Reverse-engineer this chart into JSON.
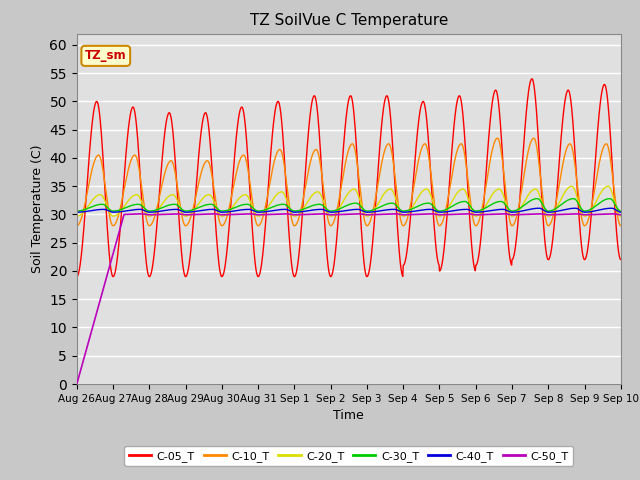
{
  "title": "TZ SoilVue C Temperature",
  "xlabel": "Time",
  "ylabel": "Soil Temperature (C)",
  "ylim": [
    0,
    62
  ],
  "yticks": [
    0,
    5,
    10,
    15,
    20,
    25,
    30,
    35,
    40,
    45,
    50,
    55,
    60
  ],
  "fig_bg_color": "#c8c8c8",
  "plot_bg_color": "#e0e0e0",
  "annotation_text": "TZ_sm",
  "annotation_bg": "#ffffcc",
  "annotation_border": "#cc8800",
  "series": [
    {
      "label": "C-05_T",
      "color": "#ff0000",
      "base": 29.0,
      "amp_day_peaks": [
        21,
        20,
        19,
        19,
        20,
        21,
        22,
        22,
        22,
        21,
        22,
        23,
        25,
        23,
        24
      ],
      "amp_day_troughs": [
        10,
        10,
        10,
        10,
        10,
        10,
        10,
        10,
        10,
        8,
        9,
        8,
        7,
        7,
        7
      ],
      "peak_hour": 0.55,
      "depth": 1
    },
    {
      "label": "C-10_T",
      "color": "#ff8800",
      "base": 29.5,
      "amp_day_peaks": [
        11,
        11,
        10,
        10,
        11,
        12,
        12,
        13,
        13,
        13,
        13,
        14,
        14,
        13,
        13
      ],
      "amp_day_troughs": [
        1.5,
        1.5,
        1.5,
        1.5,
        1.5,
        1.5,
        1.5,
        1.5,
        1.5,
        1.5,
        1.5,
        1.5,
        1.5,
        1.5,
        1.5
      ],
      "peak_hour": 0.6,
      "depth": 1
    },
    {
      "label": "C-20_T",
      "color": "#dddd00",
      "base": 30.0,
      "amp_day_peaks": [
        3.5,
        3.5,
        3.5,
        3.5,
        3.5,
        4.0,
        4.0,
        4.5,
        4.5,
        4.5,
        4.5,
        4.5,
        4.5,
        5.0,
        5.0
      ],
      "amp_day_troughs": [
        0.3,
        0.3,
        0.3,
        0.3,
        0.3,
        0.3,
        0.3,
        0.3,
        0.3,
        0.3,
        0.3,
        0.3,
        0.3,
        0.3,
        0.3
      ],
      "peak_hour": 0.65,
      "depth": 1
    },
    {
      "label": "C-30_T",
      "color": "#00cc00",
      "base": 30.8,
      "amp_day_peaks": [
        1.0,
        1.0,
        1.0,
        1.0,
        1.0,
        1.0,
        1.0,
        1.2,
        1.2,
        1.2,
        1.5,
        1.5,
        2.0,
        2.0,
        2.0
      ],
      "amp_day_troughs": [
        0.2,
        0.2,
        0.2,
        0.2,
        0.2,
        0.2,
        0.2,
        0.2,
        0.2,
        0.2,
        0.2,
        0.2,
        0.2,
        0.2,
        0.2
      ],
      "peak_hour": 0.7,
      "depth": 1
    },
    {
      "label": "C-40_T",
      "color": "#0000dd",
      "base": 30.5,
      "amp_day_peaks": [
        0.4,
        0.4,
        0.4,
        0.4,
        0.4,
        0.4,
        0.4,
        0.4,
        0.4,
        0.4,
        0.4,
        0.4,
        0.6,
        0.6,
        0.6
      ],
      "amp_day_troughs": [
        0.1,
        0.1,
        0.1,
        0.1,
        0.1,
        0.1,
        0.1,
        0.1,
        0.1,
        0.1,
        0.1,
        0.1,
        0.1,
        0.1,
        0.1
      ],
      "peak_hour": 0.75,
      "depth": 1
    },
    {
      "label": "C-50_T",
      "color": "#bb00bb",
      "base": 30.0,
      "rise_end_day": 1.3,
      "start_val": 0.0,
      "amp_day_peaks": [
        0.1,
        0.1,
        0.1,
        0.1,
        0.1,
        0.1,
        0.1,
        0.1,
        0.1,
        0.1,
        0.1,
        0.1,
        0.1,
        0.1,
        0.1
      ],
      "amp_day_troughs": [
        0.05,
        0.05,
        0.05,
        0.05,
        0.05,
        0.05,
        0.05,
        0.05,
        0.05,
        0.05,
        0.05,
        0.05,
        0.05,
        0.05,
        0.05
      ],
      "peak_hour": 0.8,
      "depth": 1
    }
  ],
  "x_tick_labels": [
    "Aug 26",
    "Aug 27",
    "Aug 28",
    "Aug 29",
    "Aug 30",
    "Aug 31",
    "Sep 1",
    "Sep 2",
    "Sep 3",
    "Sep 4",
    "Sep 5",
    "Sep 6",
    "Sep 7",
    "Sep 8",
    "Sep 9",
    "Sep 10"
  ],
  "x_tick_positions": [
    0,
    1,
    2,
    3,
    4,
    5,
    6,
    7,
    8,
    9,
    10,
    11,
    12,
    13,
    14,
    15
  ],
  "total_days": 15,
  "samples_per_day": 96
}
